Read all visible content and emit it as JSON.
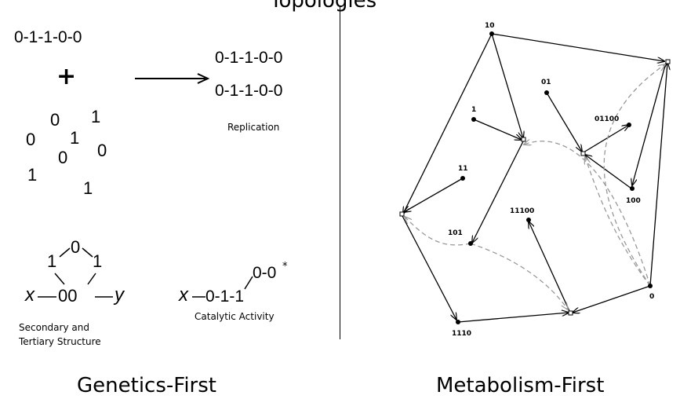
{
  "header": {
    "title": "Topologies"
  },
  "genetics": {
    "sequence": "0-1-1-0-0",
    "plus": "+",
    "product_1": "0-1-1-0-0",
    "product_2": "0-1-1-0-0",
    "replication_label": "Replication",
    "monomers": [
      "0",
      "1",
      "0",
      "1",
      "0",
      "1",
      "0",
      "1"
    ],
    "ring_0": "0",
    "ring_1a": "1",
    "ring_1b": "1",
    "ring_x": "x",
    "ring_00": "00",
    "ring_y": "y",
    "secondary_label_1": "Secondary and",
    "secondary_label_2": "Tertiary Structure",
    "cat_x": "x",
    "cat_seq": "0-1-1",
    "cat_tail": "0-0",
    "cat_star": "*",
    "catalytic_label": "Catalytic Activity",
    "footer": "Genetics-First"
  },
  "metabolism": {
    "footer": "Metabolism-First",
    "nodes": [
      "10",
      "01",
      "1",
      "01100",
      "11",
      "100",
      "11100",
      "101",
      "0",
      "1110"
    ]
  }
}
